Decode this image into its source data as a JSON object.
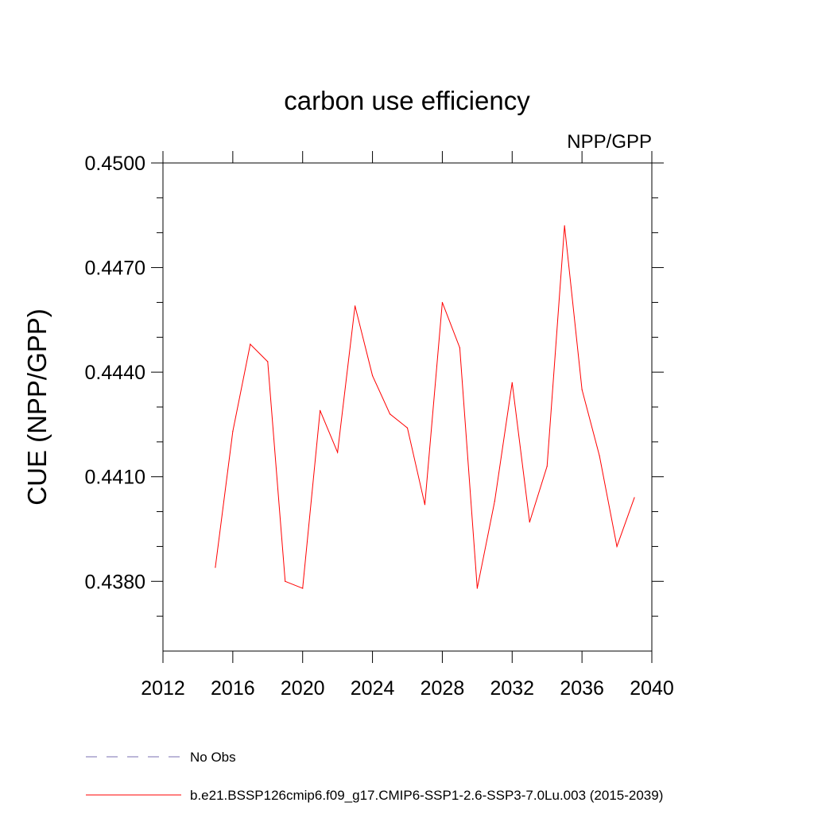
{
  "chart_data": {
    "type": "line",
    "title": "carbon use efficiency",
    "subtitle": "NPP/GPP",
    "xlabel": "",
    "ylabel": "CUE  (NPP/GPP)",
    "xlim": [
      2012,
      2040
    ],
    "ylim": [
      0.436,
      0.45
    ],
    "x_ticks": [
      2012,
      2016,
      2020,
      2024,
      2028,
      2032,
      2036,
      2040
    ],
    "x_tick_labels": [
      "2012",
      "2016",
      "2020",
      "2024",
      "2028",
      "2032",
      "2036",
      "2040"
    ],
    "x_minor_ticks": [],
    "y_ticks": [
      0.438,
      0.441,
      0.444,
      0.447,
      0.45
    ],
    "y_tick_labels": [
      "0.4380",
      "0.4410",
      "0.4440",
      "0.4470",
      "0.4500"
    ],
    "y_minor_ticks": [
      0.437,
      0.439,
      0.44,
      0.442,
      0.443,
      0.445,
      0.446,
      0.448,
      0.449
    ],
    "grid": false,
    "series": [
      {
        "name": "b.e21.BSSP126cmip6.f09_g17.CMIP6-SSP1-2.6-SSP3-7.0Lu.003 (2015-2039)",
        "color": "#ff0000",
        "style": "solid",
        "x": [
          2015,
          2016,
          2017,
          2018,
          2019,
          2020,
          2021,
          2022,
          2023,
          2024,
          2025,
          2026,
          2027,
          2028,
          2029,
          2030,
          2031,
          2032,
          2033,
          2034,
          2035,
          2036,
          2037,
          2038,
          2039
        ],
        "values": [
          0.4384,
          0.4423,
          0.4448,
          0.4443,
          0.438,
          0.4378,
          0.4429,
          0.4417,
          0.4459,
          0.4439,
          0.4428,
          0.4424,
          0.4402,
          0.446,
          0.4447,
          0.4378,
          0.4403,
          0.4437,
          0.4397,
          0.4413,
          0.4482,
          0.4435,
          0.4416,
          0.439,
          0.4404
        ]
      }
    ],
    "legend": {
      "placement": "bottom",
      "entries": [
        {
          "label": "No Obs",
          "color": "#7a6fb0",
          "style": "dashed"
        },
        {
          "label": "b.e21.BSSP126cmip6.f09_g17.CMIP6-SSP1-2.6-SSP3-7.0Lu.003 (2015-2039)",
          "color": "#ff0000",
          "style": "solid"
        }
      ]
    }
  }
}
